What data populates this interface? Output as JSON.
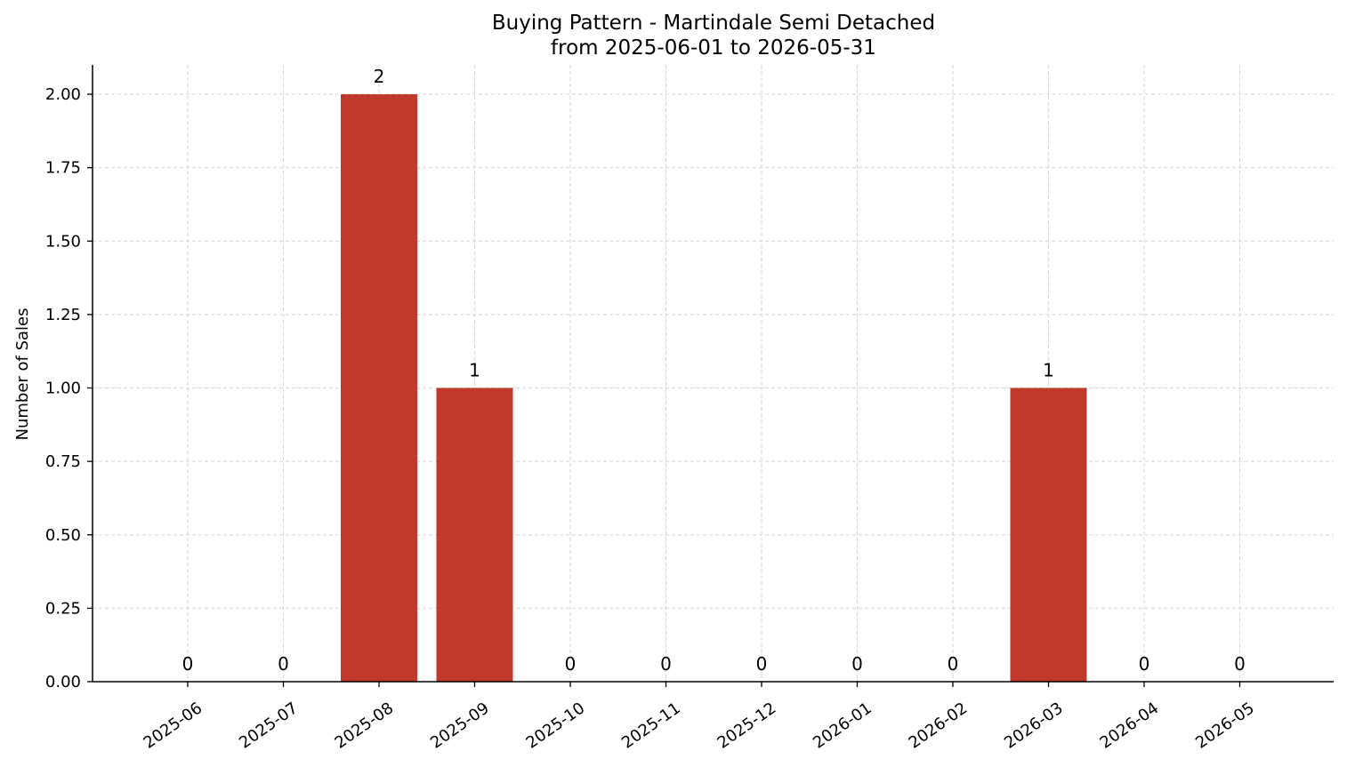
{
  "chart_data": {
    "type": "bar",
    "title": "Buying Pattern - Martindale Semi Detached",
    "subtitle": "from 2025-06-01 to 2026-05-31",
    "xlabel": "",
    "ylabel": "Number of Sales",
    "categories": [
      "2025-06",
      "2025-07",
      "2025-08",
      "2025-09",
      "2025-10",
      "2025-11",
      "2025-12",
      "2026-01",
      "2026-02",
      "2026-03",
      "2026-04",
      "2026-05"
    ],
    "values": [
      0,
      0,
      2,
      1,
      0,
      0,
      0,
      0,
      0,
      1,
      0,
      0
    ],
    "data_labels": [
      "0",
      "0",
      "2",
      "1",
      "0",
      "0",
      "0",
      "0",
      "0",
      "1",
      "0",
      "0"
    ],
    "ylim": [
      0,
      2.1
    ],
    "yticks": [
      "0.00",
      "0.25",
      "0.50",
      "0.75",
      "1.00",
      "1.25",
      "1.50",
      "1.75",
      "2.00"
    ],
    "grid": true,
    "legend": "none",
    "bar_color": "#c0392b"
  }
}
